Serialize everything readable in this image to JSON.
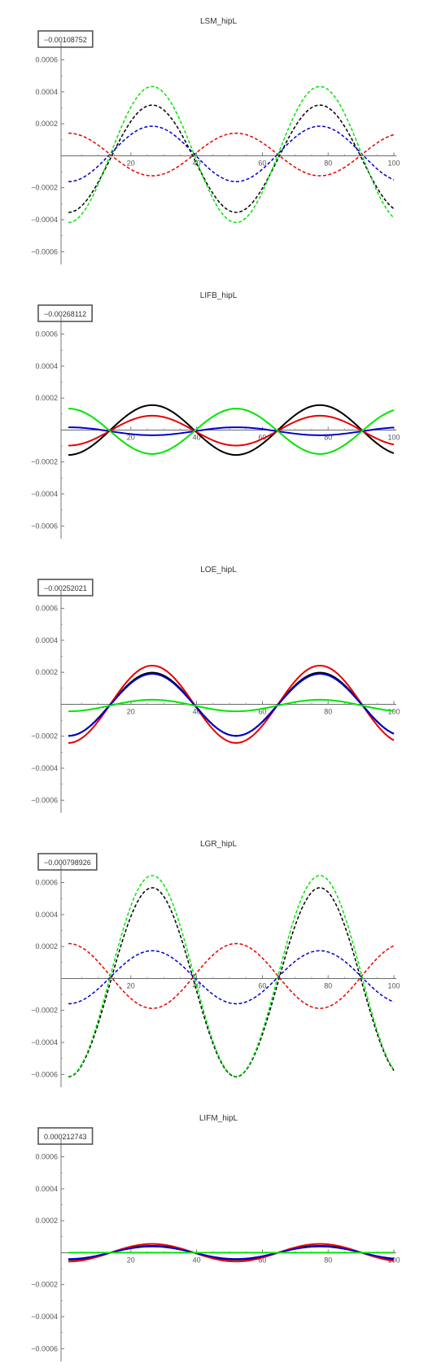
{
  "chart_data": [
    {
      "type": "line",
      "title": "LSM_hipL",
      "badge": "−0.00108752",
      "xlim": [
        0,
        100
      ],
      "ylim": [
        -0.00068,
        0.00072
      ],
      "xticks": [
        20,
        40,
        60,
        80,
        100
      ],
      "yticks": [
        -0.0006,
        -0.0004,
        -0.0002,
        0.0002,
        0.0004,
        0.0006
      ],
      "xtick_labels": [
        "20",
        "40",
        "60",
        "80",
        "100"
      ],
      "ytick_labels": [
        "−0.0006",
        "−0.0004",
        "−0.0002",
        "0.0002",
        "0.0004",
        "0.0006"
      ],
      "series": [
        {
          "color": "#000000",
          "style": "dashed",
          "mean": -1.85e-05,
          "amp": -0.000336
        },
        {
          "color": "#e60000",
          "style": "dashed",
          "mean": 7.9e-06,
          "amp": 0.0001335
        },
        {
          "color": "#0000cc",
          "style": "dashed",
          "mean": 1.18e-05,
          "amp": -0.0001736
        },
        {
          "color": "#00e600",
          "style": "dashed",
          "mean": 7.9e-06,
          "amp": -0.000426
        }
      ]
    },
    {
      "type": "line",
      "title": "LIFB_hipL",
      "badge": "−0.00268112",
      "xlim": [
        0,
        100
      ],
      "ylim": [
        -0.00068,
        0.00072
      ],
      "xticks": [
        20,
        40,
        60,
        80,
        100
      ],
      "yticks": [
        -0.0006,
        -0.0004,
        -0.0002,
        0.0002,
        0.0004,
        0.0006
      ],
      "xtick_labels": [
        "20",
        "40",
        "60",
        "80",
        "100"
      ],
      "ytick_labels": [
        "−0.0006",
        "−0.0004",
        "−0.0002",
        "0.0002",
        "0.0004",
        "0.0006"
      ],
      "series": [
        {
          "color": "#000000",
          "style": "solid",
          "mean": 0,
          "amp": -0.000156
        },
        {
          "color": "#e60000",
          "style": "solid",
          "mean": -3.9e-06,
          "amp": -9.35e-05
        },
        {
          "color": "#0000cc",
          "style": "solid",
          "mean": -7.9e-06,
          "amp": 2.5e-05
        },
        {
          "color": "#00e600",
          "style": "solid",
          "mean": -7.9e-06,
          "amp": 0.000142
        }
      ]
    },
    {
      "type": "line",
      "title": "LOE_hipL",
      "badge": "−0.00252021",
      "xlim": [
        0,
        100
      ],
      "ylim": [
        -0.00068,
        0.00072
      ],
      "xticks": [
        20,
        40,
        60,
        80,
        100
      ],
      "yticks": [
        -0.0006,
        -0.0004,
        -0.0002,
        0.0002,
        0.0004,
        0.0006
      ],
      "xtick_labels": [
        "20",
        "40",
        "60",
        "80",
        "100"
      ],
      "ytick_labels": [
        "−0.0006",
        "−0.0004",
        "−0.0002",
        "0.0002",
        "0.0004",
        "0.0006"
      ],
      "series": [
        {
          "color": "#000000",
          "style": "solid",
          "mean": 0,
          "amp": -0.000198
        },
        {
          "color": "#e60000",
          "style": "solid",
          "mean": 0,
          "amp": -0.000242
        },
        {
          "color": "#0000cc",
          "style": "solid",
          "mean": -3.9e-06,
          "amp": -0.000194
        },
        {
          "color": "#00e600",
          "style": "solid",
          "mean": -7.9e-06,
          "amp": -3.61e-05
        }
      ]
    },
    {
      "type": "line",
      "title": "LGR_hipL",
      "badge": "−0.000798926",
      "xlim": [
        0,
        100
      ],
      "ylim": [
        -0.00068,
        0.00072
      ],
      "xticks": [
        20,
        40,
        60,
        80,
        100
      ],
      "yticks": [
        -0.0006,
        -0.0004,
        -0.0002,
        0.0002,
        0.0004,
        0.0006
      ],
      "xtick_labels": [
        "20",
        "40",
        "60",
        "80",
        "100"
      ],
      "ytick_labels": [
        "−0.0006",
        "−0.0004",
        "−0.0002",
        "0.0002",
        "0.0004",
        "0.0006"
      ],
      "series": [
        {
          "color": "#000000",
          "style": "dashed",
          "mean": -2.37e-05,
          "amp": -0.000592
        },
        {
          "color": "#e60000",
          "style": "dashed",
          "mean": 1.58e-05,
          "amp": 0.000203
        },
        {
          "color": "#0000cc",
          "style": "dashed",
          "mean": 7.9e-06,
          "amp": -0.000166
        },
        {
          "color": "#00e600",
          "style": "dashed",
          "mean": 1.58e-05,
          "amp": -0.000629
        }
      ]
    },
    {
      "type": "line",
      "title": "LIFM_hipL",
      "badge": "0.000212743",
      "xlim": [
        0,
        100
      ],
      "ylim": [
        -0.00068,
        0.00072
      ],
      "xticks": [
        20,
        40,
        60,
        80,
        100
      ],
      "yticks": [
        -0.0006,
        -0.0004,
        -0.0002,
        0.0002,
        0.0004,
        0.0006
      ],
      "xtick_labels": [
        "20",
        "40",
        "60",
        "80",
        "100"
      ],
      "ytick_labels": [
        "−0.0006",
        "−0.0004",
        "−0.0002",
        "0.0002",
        "0.0004",
        "0.0006"
      ],
      "series": [
        {
          "color": "#000000",
          "style": "solid",
          "mean": 0,
          "amp": -4.33e-05
        },
        {
          "color": "#e60000",
          "style": "solid",
          "mean": 0,
          "amp": -5.51e-05
        },
        {
          "color": "#0000cc",
          "style": "solid",
          "mean": 0,
          "amp": -3.94e-05
        },
        {
          "color": "#00e600",
          "style": "solid",
          "mean": 0,
          "amp": 0
        }
      ]
    }
  ]
}
